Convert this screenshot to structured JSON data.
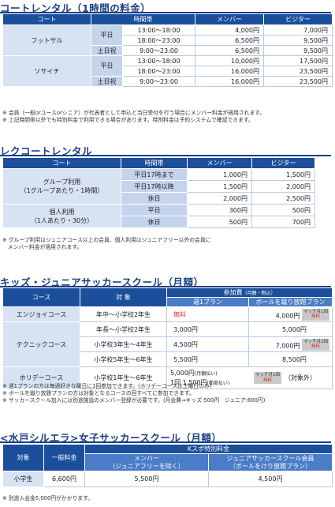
{
  "s1": {
    "title": "コートレンタル（1時間の料金）",
    "headers": [
      "コート",
      "時間帯",
      "メンバー",
      "ビジター"
    ],
    "futsal": "フットサル",
    "sosaichi": "ソサイチ",
    "weekday": "平日",
    "holiday": "土日祝",
    "rows": [
      {
        "time": "13:00～18:00",
        "member": "4,000円",
        "visitor": "7,000円"
      },
      {
        "time": "18:00～23:00",
        "member": "6,500円",
        "visitor": "9,500円"
      },
      {
        "time": "9:00～23:00",
        "member": "6,500円",
        "visitor": "9,500円"
      },
      {
        "time": "13:00～18:00",
        "member": "10,000円",
        "visitor": "17,500円"
      },
      {
        "time": "18:00～23:00",
        "member": "16,000円",
        "visitor": "23,500円"
      },
      {
        "time": "9:00～23:00",
        "member": "16,000円",
        "visitor": "23,500円"
      }
    ],
    "notes": [
      "※ 会員（一般orユースorシニア）が代表者として申込と当日受付を行う場合にメンバー料金が適用されます。",
      "※ 上記時間帯以外でも特別料金で利用できる場合があります。特別料金は予約システムで確認できます。"
    ]
  },
  "s2": {
    "title": "レクコートレンタル",
    "headers": [
      "コート",
      "時間帯",
      "メンバー",
      "ビジター"
    ],
    "group": "グループ利用",
    "group_sub": "（1グループあたり・1時間）",
    "indiv": "個人利用",
    "indiv_sub": "（1人あたり・30分）",
    "rows": [
      {
        "time": "平日17時まで",
        "member": "1,000円",
        "visitor": "1,500円"
      },
      {
        "time": "平日17時以降",
        "member": "1,500円",
        "visitor": "2,000円"
      },
      {
        "time": "休日",
        "member": "2,000円",
        "visitor": "2,500円"
      },
      {
        "time": "平日",
        "member": "300円",
        "visitor": "500円"
      },
      {
        "time": "休日",
        "member": "500円",
        "visitor": "700円"
      }
    ],
    "notes": [
      "※ グループ利用はジュニアコース以上の会員、個人利用はジュニアフリー以外の会員に",
      "　メンバー料金が適用されます。"
    ]
  },
  "s3": {
    "title": "キッズ・ジュニアサッカースクール（月額）",
    "h_course": "コース",
    "h_target": "対 象",
    "h_fee": "参加費",
    "h_fee_sub": "（月額・税込）",
    "h_week1": "週1プラン",
    "h_unlimited": "ボールを蹴り放題プラン",
    "match1": "マッチ月1回",
    "match2": "マッチ月2回",
    "free": "無料",
    "enjoy": "エンジョイコース",
    "enjoy_target": "年中～小学校2年生",
    "enjoy_week1": "無料",
    "enjoy_unl": "4,000円",
    "tech": "テクニックコース",
    "tech_rows": [
      {
        "target": "年長～小学校2年生",
        "week1": "3,000円",
        "unl": "5,000円"
      },
      {
        "target": "小学校3年生～4年生",
        "week1": "4,500円",
        "unl": "7,000円"
      },
      {
        "target": "小学校5年生～6年生",
        "week1": "5,500円",
        "unl": "8,500円"
      }
    ],
    "holiday": "ホリデーコース",
    "holiday_target": "小学校1年生～6年生",
    "holiday_fee1": "5,000円",
    "holiday_fee1_sub": "(月額払い)",
    "holiday_fee2": "1回 1,500円",
    "holiday_fee2_sub": "(都度払い)",
    "holiday_target2": "（対象外）",
    "notes": [
      "※ 週1プランの方は毎週好きな曜日に1回参加できます。(ホリデーコースは土曜日のみ)",
      "※ ボールを蹴り放題プランの方は対象となるコースの回すべてに参加できます。",
      "※ サッカースクール加入には別途施設のメンバー登録が必要です。(月会費⇒キッズ:500円　ジュニア:800円)"
    ]
  },
  "s4": {
    "title": "<水戸シルエラ>女子サッカースクール（月額）",
    "h_target": "対象",
    "h_general": "一般料金",
    "h_ksp": "Kスポ特別料金",
    "h_member": "メンバー",
    "h_member_sub": "（ジュニアフリーを除く）",
    "h_junior": "ジュニアサッカースクール会員",
    "h_junior_sub": "（ボールをけり放題プラン）",
    "row_target": "小学生",
    "row_general": "6,600円",
    "row_member": "5,500円",
    "row_junior": "4,500円",
    "note": "※ 別途入会金5,000円がかかります。"
  },
  "colors": {
    "navy": "#1b4f9b",
    "light": "#d7e2f3",
    "red": "#e5322e"
  }
}
